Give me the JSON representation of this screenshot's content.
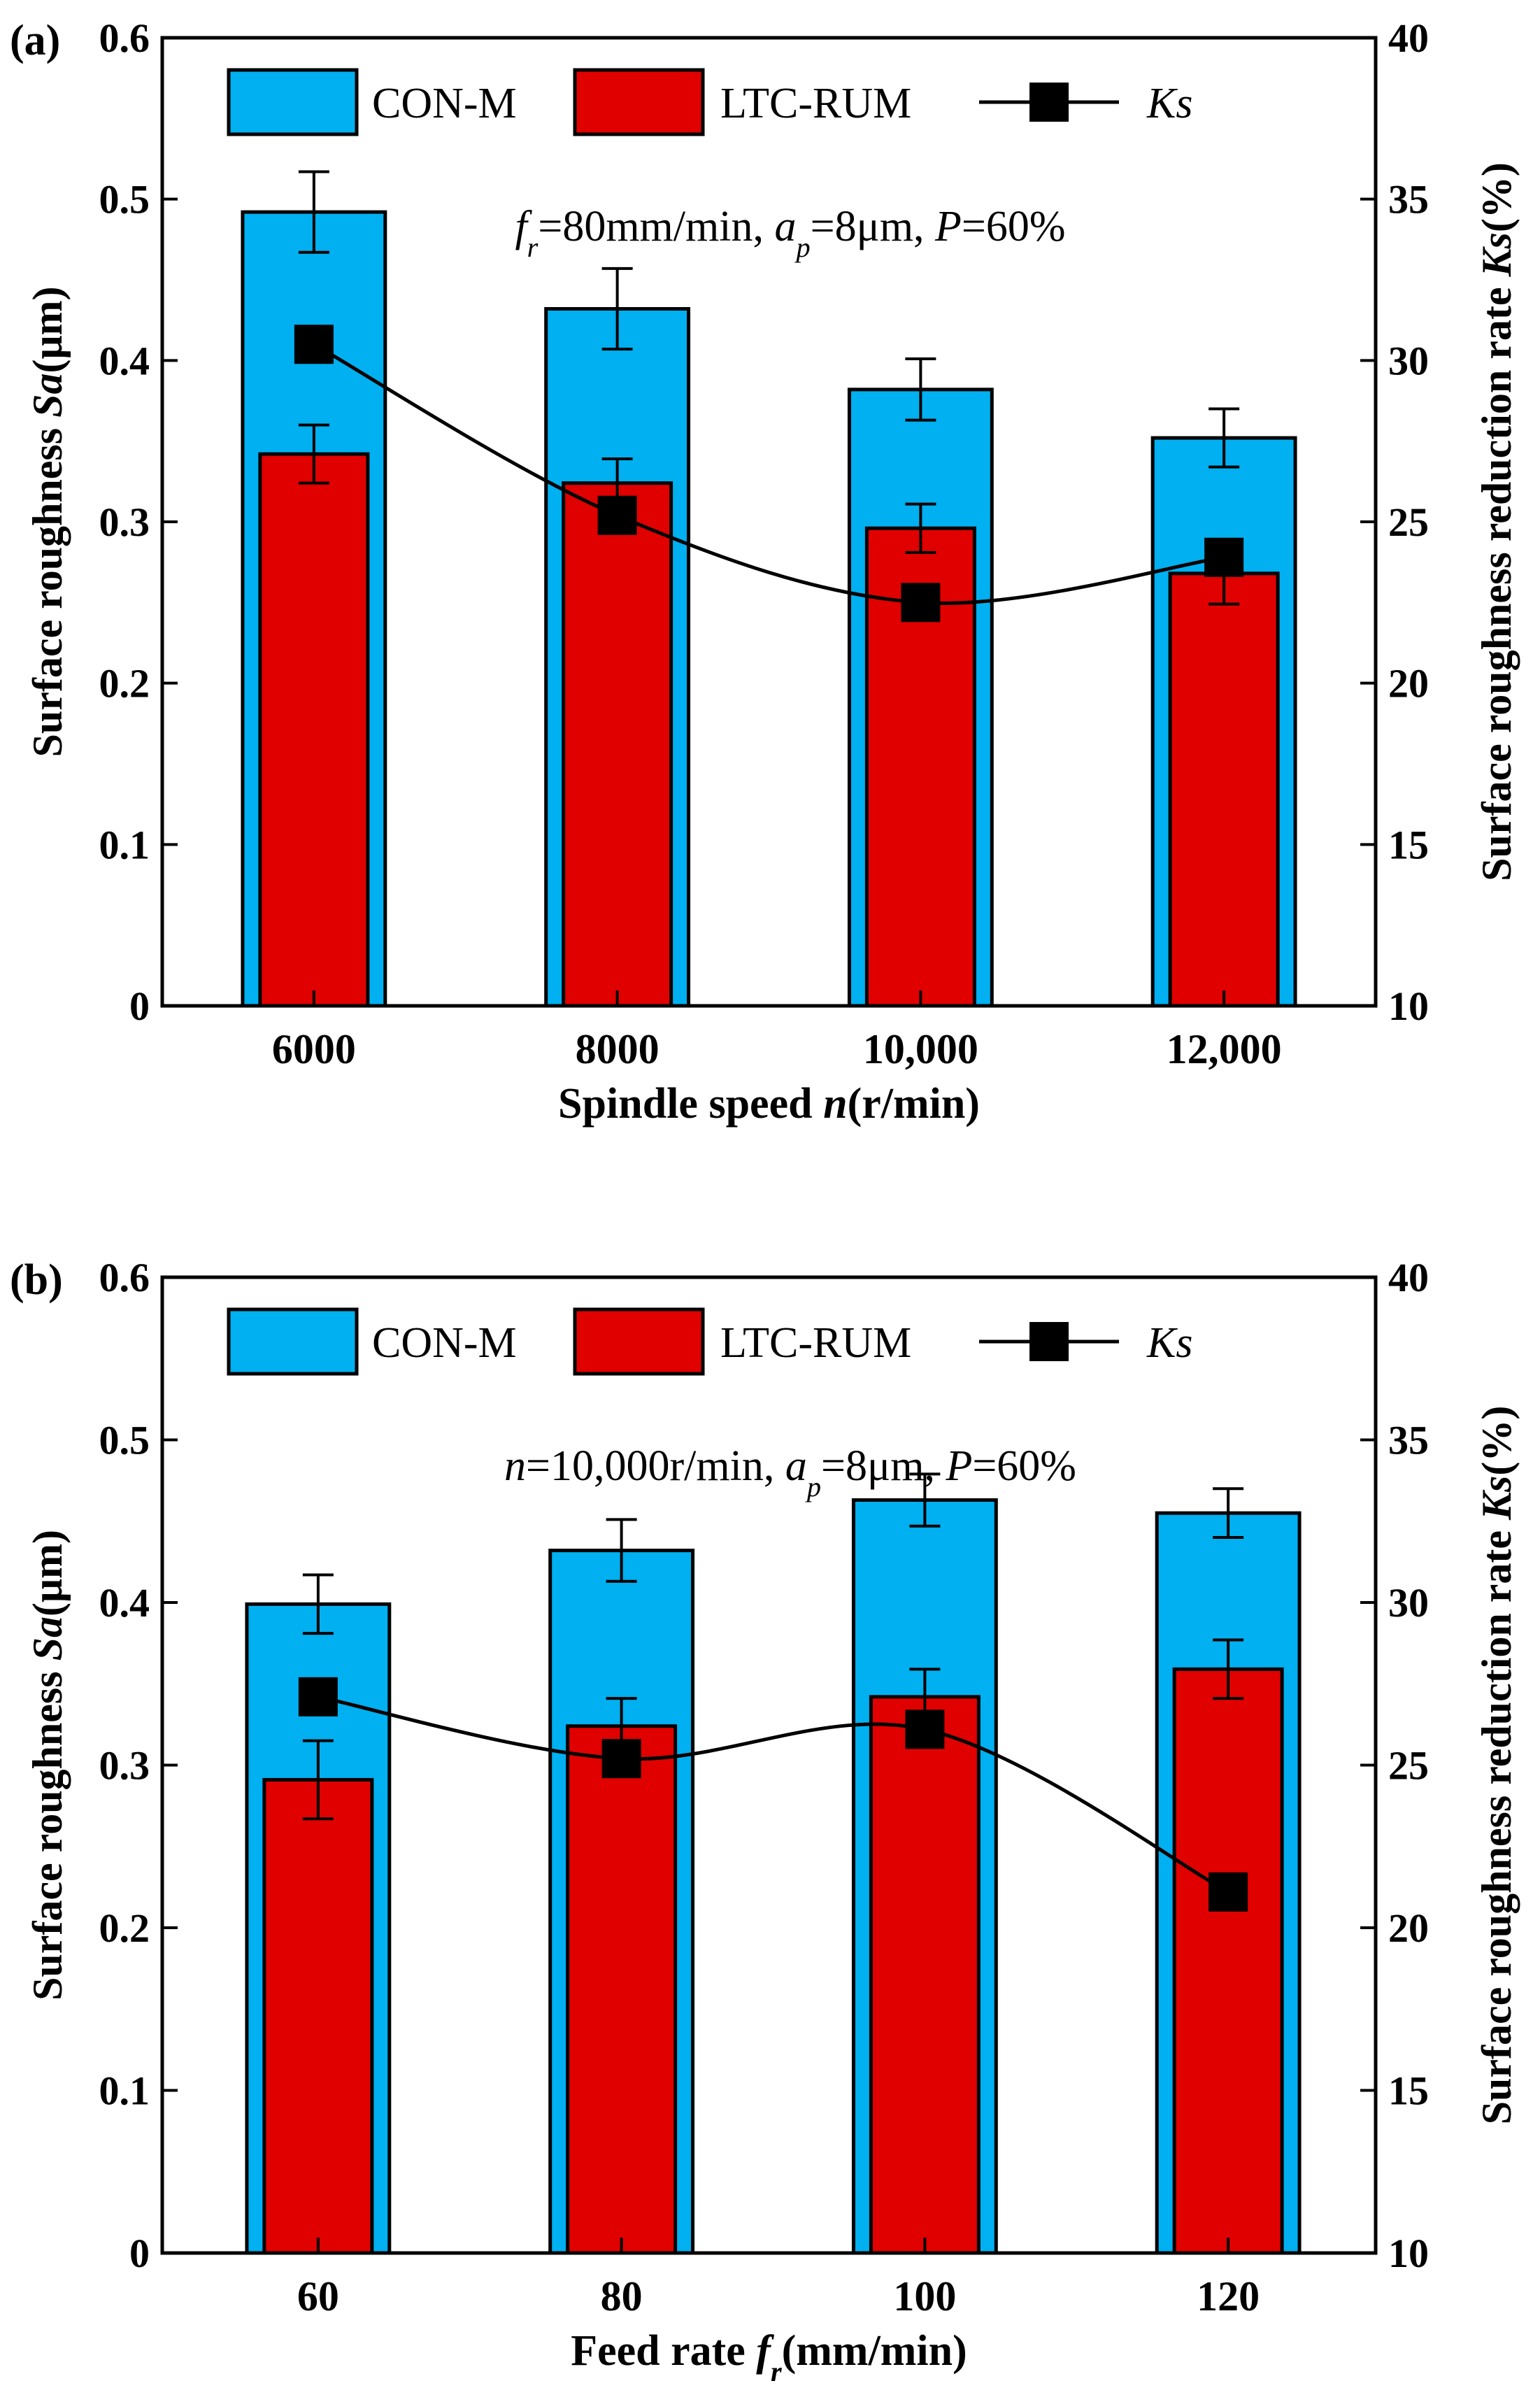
{
  "colors": {
    "con": "#00b0f0",
    "ltc": "#e00000",
    "line": "#000000"
  },
  "chart_data": [
    {
      "type": "bar",
      "panel_label": "(a)",
      "annotation": {
        "parts": [
          [
            "f",
            "i"
          ],
          [
            "r",
            "sub-i"
          ],
          [
            "=80mm/min, ",
            ""
          ],
          [
            "a",
            "i"
          ],
          [
            "p",
            "sub-i"
          ],
          [
            "=8μm, ",
            ""
          ],
          [
            "P",
            "i"
          ],
          [
            "=60%",
            ""
          ]
        ]
      },
      "xlabel": {
        "parts": [
          [
            "Spindle speed ",
            ""
          ],
          [
            "n",
            "i"
          ],
          [
            "(r/min)",
            ""
          ]
        ]
      },
      "ylabel": {
        "parts": [
          [
            "Surface roughness ",
            ""
          ],
          [
            "Sa",
            "i"
          ],
          [
            "(μm)",
            ""
          ]
        ]
      },
      "y2label": {
        "parts": [
          [
            "Surface roughness reduction rate ",
            ""
          ],
          [
            "Ks",
            "i"
          ],
          [
            "(%)",
            ""
          ]
        ]
      },
      "categories": [
        "6000",
        "8000",
        "10,000",
        "12,000"
      ],
      "ylim": [
        0,
        0.6
      ],
      "yticks": [
        "0",
        "0.1",
        "0.2",
        "0.3",
        "0.4",
        "0.5",
        "0.6"
      ],
      "y2lim": [
        10,
        40
      ],
      "y2ticks": [
        "10",
        "15",
        "20",
        "25",
        "30",
        "35",
        "40"
      ],
      "legend": [
        "CON-M",
        "LTC-RUM",
        "Ks"
      ],
      "legend_position": "top",
      "series": [
        {
          "name": "CON-M",
          "values": [
            0.492,
            0.432,
            0.382,
            0.352
          ],
          "errors": [
            0.025,
            0.025,
            0.019,
            0.018
          ]
        },
        {
          "name": "LTC-RUM",
          "values": [
            0.342,
            0.324,
            0.296,
            0.268
          ],
          "errors": [
            0.018,
            0.015,
            0.015,
            0.019
          ]
        },
        {
          "name": "Ks",
          "axis": "right",
          "values": [
            30.5,
            25.2,
            22.5,
            23.9
          ]
        }
      ]
    },
    {
      "type": "bar",
      "panel_label": "(b)",
      "annotation": {
        "parts": [
          [
            "n",
            "i"
          ],
          [
            "=10,000r/min, ",
            ""
          ],
          [
            "a",
            "i"
          ],
          [
            "p",
            "sub-i"
          ],
          [
            "=8μm, ",
            ""
          ],
          [
            "P",
            "i"
          ],
          [
            "=60%",
            ""
          ]
        ]
      },
      "xlabel": {
        "parts": [
          [
            "Feed rate ",
            ""
          ],
          [
            "f",
            "i"
          ],
          [
            "r",
            "sub-i"
          ],
          [
            "(mm/min)",
            ""
          ]
        ]
      },
      "ylabel": {
        "parts": [
          [
            "Surface roughness ",
            ""
          ],
          [
            "Sa",
            "i"
          ],
          [
            "(μm)",
            ""
          ]
        ]
      },
      "y2label": {
        "parts": [
          [
            "Surface roughness reduction rate ",
            ""
          ],
          [
            "Ks",
            "i"
          ],
          [
            "(%)",
            ""
          ]
        ]
      },
      "categories": [
        "60",
        "80",
        "100",
        "120"
      ],
      "ylim": [
        0,
        0.6
      ],
      "yticks": [
        "0",
        "0.1",
        "0.2",
        "0.3",
        "0.4",
        "0.5",
        "0.6"
      ],
      "y2lim": [
        10,
        40
      ],
      "y2ticks": [
        "10",
        "15",
        "20",
        "25",
        "30",
        "35",
        "40"
      ],
      "legend": [
        "CON-M",
        "LTC-RUM",
        "Ks"
      ],
      "legend_position": "top",
      "series": [
        {
          "name": "CON-M",
          "values": [
            0.399,
            0.432,
            0.463,
            0.455
          ],
          "errors": [
            0.018,
            0.019,
            0.016,
            0.015
          ]
        },
        {
          "name": "LTC-RUM",
          "values": [
            0.291,
            0.324,
            0.342,
            0.359
          ],
          "errors": [
            0.024,
            0.017,
            0.017,
            0.018
          ]
        },
        {
          "name": "Ks",
          "axis": "right",
          "values": [
            27.1,
            25.2,
            26.1,
            21.1
          ]
        }
      ]
    }
  ]
}
